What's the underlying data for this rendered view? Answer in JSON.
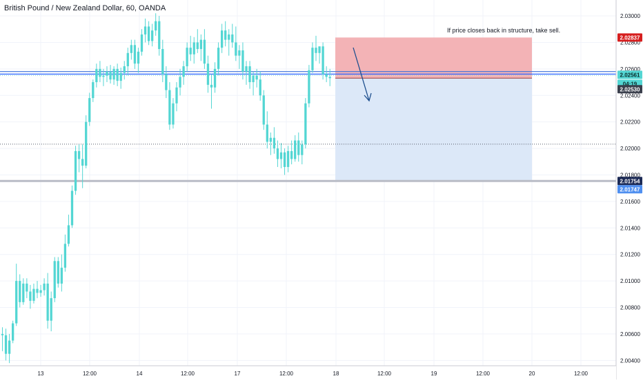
{
  "title": "British Pound / New Zealand Dollar, 60, OANDA",
  "annotation": "If price closes back in structure, take sell.",
  "colors": {
    "bull": "#53d6d3",
    "bear": "#53d6d3",
    "grid": "#f0f3fa",
    "stop_zone": "#f3b3b6",
    "target_zone": "#dce8f8",
    "blue_line": "#2962ff",
    "axis_text": "#131722",
    "arrow": "#1e4f8e"
  },
  "price_labels": {
    "stop": "2.02837",
    "current": "2.02561",
    "countdown": "04:19",
    "entry": "2.02530",
    "target_top": "2.01754",
    "target_bottom": "2.01747"
  },
  "chart_data": {
    "type": "candlestick",
    "title": "British Pound / New Zealand Dollar, 60, OANDA",
    "ylim": [
      2.0036,
      2.0312
    ],
    "y_ticks": [
      "2.03000",
      "2.02800",
      "2.02600",
      "2.02400",
      "2.02200",
      "2.02000",
      "2.01800",
      "2.01600",
      "2.01400",
      "2.01200",
      "2.01000",
      "2.00800",
      "2.00600",
      "2.00400"
    ],
    "x_ticks": [
      "13",
      "12:00",
      "14",
      "12:00",
      "17",
      "12:00",
      "18",
      "12:00",
      "19",
      "12:00",
      "20",
      "12:00"
    ],
    "horizontal_levels": [
      2.02561,
      2.0258,
      2.02032,
      2.01754
    ],
    "position": {
      "type": "short",
      "entry": 2.0253,
      "stop": 2.02837,
      "target": 2.01754
    },
    "candles": [
      [
        2.006,
        2.0065,
        2.0047,
        2.0059
      ],
      [
        2.0059,
        2.0064,
        2.004,
        2.0045
      ],
      [
        2.0045,
        2.006,
        2.0038,
        2.0055
      ],
      [
        2.0055,
        2.007,
        2.0053,
        2.0068
      ],
      [
        2.0068,
        2.0113,
        2.0066,
        2.01
      ],
      [
        2.01,
        2.0105,
        2.008,
        2.0084
      ],
      [
        2.0084,
        2.0102,
        2.0082,
        2.0098
      ],
      [
        2.0098,
        2.0102,
        2.0087,
        2.0092
      ],
      [
        2.0092,
        2.0097,
        2.0079,
        2.0085
      ],
      [
        2.0085,
        2.0098,
        2.0083,
        2.0094
      ],
      [
        2.0094,
        2.01,
        2.0087,
        2.0091
      ],
      [
        2.0091,
        2.0097,
        2.0088,
        2.0093
      ],
      [
        2.0093,
        2.0102,
        2.0089,
        2.0098
      ],
      [
        2.0098,
        2.0106,
        2.0064,
        2.007
      ],
      [
        2.007,
        2.0092,
        2.0062,
        2.0087
      ],
      [
        2.0087,
        2.0118,
        2.0084,
        2.0115
      ],
      [
        2.0115,
        2.0118,
        2.0095,
        2.0098
      ],
      [
        2.0098,
        2.012,
        2.0092,
        2.011
      ],
      [
        2.011,
        2.0135,
        2.0107,
        2.0128
      ],
      [
        2.0128,
        2.015,
        2.0126,
        2.0142
      ],
      [
        2.0142,
        2.0172,
        2.014,
        2.0168
      ],
      [
        2.0168,
        2.0202,
        2.0165,
        2.0198
      ],
      [
        2.0198,
        2.0203,
        2.0182,
        2.0192
      ],
      [
        2.0192,
        2.0203,
        2.017,
        2.0187
      ],
      [
        2.0187,
        2.0225,
        2.0185,
        2.022
      ],
      [
        2.022,
        2.0242,
        2.0217,
        2.0238
      ],
      [
        2.0238,
        2.0252,
        2.0235,
        2.025
      ],
      [
        2.025,
        2.0264,
        2.0246,
        2.026
      ],
      [
        2.026,
        2.0266,
        2.025,
        2.0254
      ],
      [
        2.0254,
        2.026,
        2.0247,
        2.0255
      ],
      [
        2.0255,
        2.0262,
        2.025,
        2.0258
      ],
      [
        2.0258,
        2.0263,
        2.0249,
        2.0252
      ],
      [
        2.0252,
        2.0262,
        2.0248,
        2.026
      ],
      [
        2.026,
        2.0264,
        2.0247,
        2.0251
      ],
      [
        2.0251,
        2.0261,
        2.0245,
        2.0257
      ],
      [
        2.0257,
        2.0266,
        2.0252,
        2.0262
      ],
      [
        2.0262,
        2.0276,
        2.0255,
        2.0272
      ],
      [
        2.0272,
        2.0282,
        2.0267,
        2.0278
      ],
      [
        2.0278,
        2.0282,
        2.026,
        2.0264
      ],
      [
        2.0264,
        2.0276,
        2.0257,
        2.0273
      ],
      [
        2.0273,
        2.029,
        2.027,
        2.0286
      ],
      [
        2.0286,
        2.0298,
        2.028,
        2.0292
      ],
      [
        2.0292,
        2.0296,
        2.0278,
        2.0281
      ],
      [
        2.0281,
        2.0294,
        2.0277,
        2.0289
      ],
      [
        2.0289,
        2.0302,
        2.0285,
        2.0296
      ],
      [
        2.0296,
        2.03,
        2.027,
        2.0275
      ],
      [
        2.0275,
        2.0282,
        2.025,
        2.0256
      ],
      [
        2.0256,
        2.0262,
        2.0238,
        2.0244
      ],
      [
        2.0244,
        2.025,
        2.0214,
        2.0218
      ],
      [
        2.0218,
        2.0238,
        2.0215,
        2.0234
      ],
      [
        2.0234,
        2.025,
        2.0228,
        2.0246
      ],
      [
        2.0246,
        2.026,
        2.024,
        2.0254
      ],
      [
        2.0254,
        2.0266,
        2.0248,
        2.0262
      ],
      [
        2.0262,
        2.028,
        2.0258,
        2.0276
      ],
      [
        2.0276,
        2.0285,
        2.0266,
        2.0271
      ],
      [
        2.0271,
        2.0284,
        2.0264,
        2.028
      ],
      [
        2.028,
        2.029,
        2.0272,
        2.0275
      ],
      [
        2.0275,
        2.0286,
        2.0266,
        2.0282
      ],
      [
        2.0282,
        2.029,
        2.026,
        2.0264
      ],
      [
        2.0264,
        2.027,
        2.0242,
        2.0248
      ],
      [
        2.0248,
        2.0256,
        2.023,
        2.0246
      ],
      [
        2.0246,
        2.0265,
        2.0242,
        2.026
      ],
      [
        2.026,
        2.028,
        2.0255,
        2.0276
      ],
      [
        2.0276,
        2.0294,
        2.0272,
        2.0289
      ],
      [
        2.0289,
        2.0296,
        2.0277,
        2.0282
      ],
      [
        2.0282,
        2.029,
        2.027,
        2.0286
      ],
      [
        2.0286,
        2.0294,
        2.0276,
        2.028
      ],
      [
        2.028,
        2.0292,
        2.0266,
        2.027
      ],
      [
        2.027,
        2.0278,
        2.026,
        2.0274
      ],
      [
        2.0274,
        2.028,
        2.0252,
        2.0258
      ],
      [
        2.0258,
        2.0266,
        2.0248,
        2.0262
      ],
      [
        2.0262,
        2.0266,
        2.0245,
        2.025
      ],
      [
        2.025,
        2.0258,
        2.024,
        2.0255
      ],
      [
        2.0255,
        2.026,
        2.0246,
        2.0252
      ],
      [
        2.0252,
        2.0258,
        2.0236,
        2.024
      ],
      [
        2.024,
        2.0244,
        2.0214,
        2.0218
      ],
      [
        2.0218,
        2.0228,
        2.02,
        2.0205
      ],
      [
        2.0205,
        2.0212,
        2.0195,
        2.0208
      ],
      [
        2.0208,
        2.0216,
        2.0196,
        2.02
      ],
      [
        2.02,
        2.0206,
        2.0186,
        2.0192
      ],
      [
        2.0192,
        2.0204,
        2.0185,
        2.0197
      ],
      [
        2.0197,
        2.02,
        2.018,
        2.0186
      ],
      [
        2.0186,
        2.0202,
        2.0182,
        2.0198
      ],
      [
        2.0198,
        2.0206,
        2.0188,
        2.0192
      ],
      [
        2.0192,
        2.021,
        2.019,
        2.0206
      ],
      [
        2.0206,
        2.0212,
        2.019,
        2.0195
      ],
      [
        2.0195,
        2.0206,
        2.0188,
        2.0203
      ],
      [
        2.0203,
        2.0238,
        2.02,
        2.0234
      ],
      [
        2.0234,
        2.0263,
        2.0231,
        2.0259
      ],
      [
        2.0259,
        2.028,
        2.0257,
        2.0276
      ],
      [
        2.0276,
        2.0285,
        2.0266,
        2.0272
      ],
      [
        2.0272,
        2.0277,
        2.0264,
        2.0277
      ],
      [
        2.0277,
        2.028,
        2.0252,
        2.0256
      ],
      [
        2.0256,
        2.0262,
        2.025,
        2.0254
      ],
      [
        2.0254,
        2.026,
        2.0247,
        2.0253
      ]
    ]
  }
}
